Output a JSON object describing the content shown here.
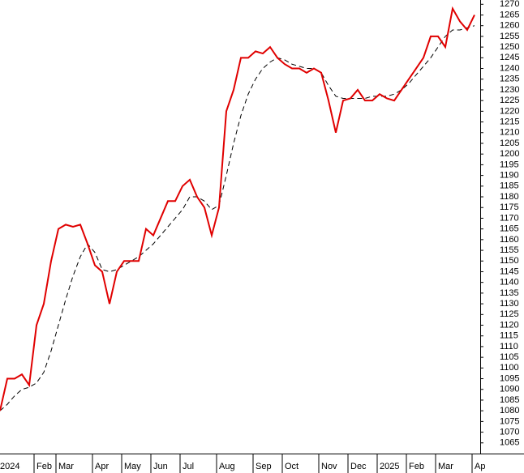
{
  "chart_data": {
    "type": "line",
    "categories": [
      "2024",
      null,
      null,
      null,
      null,
      "Feb",
      null,
      null,
      "Mar",
      null,
      null,
      null,
      null,
      "Apr",
      null,
      null,
      null,
      "May",
      null,
      null,
      null,
      "Jun",
      null,
      null,
      null,
      "Jul",
      null,
      null,
      null,
      null,
      "Aug",
      null,
      null,
      null,
      null,
      "Sep",
      null,
      null,
      null,
      "Oct",
      null,
      null,
      null,
      null,
      "Nov",
      null,
      null,
      null,
      "Dec",
      null,
      null,
      null,
      "2025",
      null,
      null,
      null,
      "Feb",
      null,
      null,
      null,
      "Mar",
      null,
      null,
      null,
      null,
      "Ap"
    ],
    "series": [
      {
        "color": "#e00000",
        "dashed": false,
        "values": [
          1080,
          1095,
          1095,
          1097,
          1092,
          1120,
          1130,
          1150,
          1165,
          1167,
          1166,
          1167,
          1158,
          1148,
          1145,
          1130,
          1145,
          1150,
          1150,
          1150,
          1165,
          1162,
          1170,
          1178,
          1178,
          1185,
          1188,
          1180,
          1175,
          1162,
          1175,
          1220,
          1230,
          1245,
          1245,
          1248,
          1247,
          1250,
          1245,
          1242,
          1240,
          1240,
          1238,
          1240,
          1238,
          1225,
          1210,
          1225,
          1226,
          1230,
          1225,
          1225,
          1228,
          1226,
          1225,
          1230,
          1235,
          1240,
          1245,
          1255,
          1255,
          1250,
          1268,
          1262,
          1258,
          1265
        ]
      },
      {
        "color": "#000000",
        "dashed": true,
        "values": [
          1080,
          1083,
          1087,
          1090,
          1091,
          1093,
          1098,
          1108,
          1120,
          1132,
          1143,
          1152,
          1158,
          1154,
          1146,
          1145,
          1146,
          1148,
          1150,
          1152,
          1155,
          1158,
          1162,
          1166,
          1170,
          1174,
          1180,
          1180,
          1178,
          1174,
          1176,
          1190,
          1205,
          1218,
          1228,
          1235,
          1240,
          1243,
          1245,
          1244,
          1242,
          1241,
          1240,
          1240,
          1238,
          1232,
          1227,
          1226,
          1226,
          1226,
          1226,
          1227,
          1227,
          1227,
          1228,
          1230,
          1233,
          1237,
          1241,
          1245,
          1250,
          1255,
          1258,
          1258,
          1259,
          1260
        ]
      }
    ],
    "ylim": [
      1060,
      1272
    ],
    "yticks": [
      1065,
      1070,
      1075,
      1080,
      1085,
      1090,
      1095,
      1100,
      1105,
      1110,
      1115,
      1120,
      1125,
      1130,
      1135,
      1140,
      1145,
      1150,
      1155,
      1160,
      1165,
      1170,
      1175,
      1180,
      1185,
      1190,
      1195,
      1200,
      1205,
      1210,
      1215,
      1220,
      1225,
      1230,
      1235,
      1240,
      1245,
      1250,
      1255,
      1260,
      1265,
      1270
    ],
    "grid": false
  }
}
